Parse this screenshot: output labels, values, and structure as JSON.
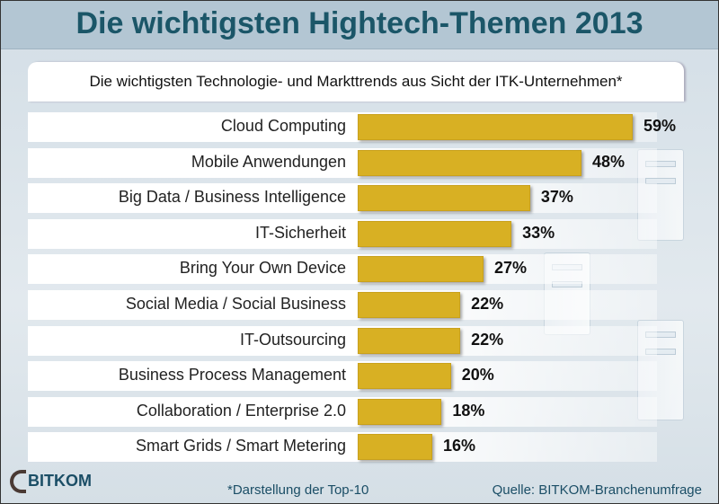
{
  "chart_data": {
    "type": "bar",
    "orientation": "horizontal",
    "title": "Die wichtigsten Hightech-Themen 2013",
    "subtitle": "Die wichtigsten Technologie- und Markttrends aus Sicht der ITK-Unternehmen*",
    "categories": [
      "Cloud Computing",
      "Mobile Anwendungen",
      "Big Data / Business Intelligence",
      "IT-Sicherheit",
      "Bring Your Own Device",
      "Social Media / Social Business",
      "IT-Outsourcing",
      "Business Process Management",
      "Collaboration / Enterprise 2.0",
      "Smart Grids / Smart Metering"
    ],
    "values": [
      59,
      48,
      37,
      33,
      27,
      22,
      22,
      20,
      18,
      16
    ],
    "value_labels": [
      "59%",
      "48%",
      "37%",
      "33%",
      "27%",
      "22%",
      "22%",
      "20%",
      "18%",
      "16%"
    ],
    "unit": "%",
    "grid": false,
    "bar_color": "#d8b023"
  },
  "footer": {
    "logo_text": "BITKOM",
    "footnote": "*Darstellung der Top-10",
    "source": "Quelle: BITKOM-Branchenumfrage"
  },
  "colors": {
    "title": "#1b5668",
    "title_bar": "#b3c6d3",
    "background": "#d9e3ea"
  }
}
